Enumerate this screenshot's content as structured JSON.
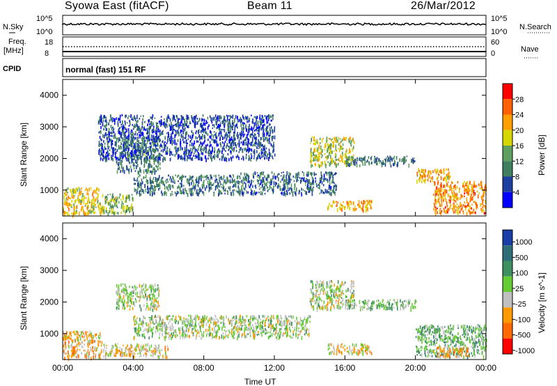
{
  "header": {
    "station": "Syowa East (fitACF)",
    "beam": "Beam 11",
    "date": "26/Mar/2012"
  },
  "strips": {
    "nsky_label": "N.Sky",
    "nsearch_label": "N.Search",
    "noise_ticks": [
      "10^5",
      "10^0"
    ],
    "freq_label": "Freq.",
    "freq_unit": "[MHz]",
    "freq_ticks": [
      "18",
      "8"
    ],
    "nave_label": "Nave",
    "nave_ticks": [
      "60",
      "0"
    ],
    "cpid_label": "CPID",
    "cpid_value": "normal (fast) 151 RF"
  },
  "colors": {
    "power_scale": [
      "#0000ff",
      "#1f3fa0",
      "#3f7f5f",
      "#5fa060",
      "#d6d600",
      "#ffa000",
      "#ff6000",
      "#ff0000"
    ],
    "velocity_scale": [
      "#1a3da8",
      "#2f6e78",
      "#3f9060",
      "#66cc33",
      "#c0c0c0",
      "#ff9900",
      "#ff6a00",
      "#ff0000"
    ],
    "ground_scatter": "#c0c0c0"
  },
  "chart_data": [
    {
      "type": "heatmap",
      "panel": "power",
      "ylabel": "Slant Range [km]",
      "xlabel": "",
      "x_ticks": [
        "00:00",
        "04:00",
        "08:00",
        "12:00",
        "16:00",
        "20:00",
        "00:00"
      ],
      "xlim_hours": [
        0,
        24
      ],
      "y_ticks": [
        1000,
        2000,
        3000,
        4000
      ],
      "ylim": [
        180,
        4500
      ],
      "colorbar": {
        "label": "Power [dB]",
        "ticks": [
          "28",
          "24",
          "20",
          "16",
          "12",
          "8",
          "4"
        ],
        "range": [
          0,
          30
        ]
      },
      "scatter_regions": [
        {
          "t": [
            0.0,
            2.2
          ],
          "r": [
            250,
            1100
          ],
          "value": 18
        },
        {
          "t": [
            2.2,
            4.0
          ],
          "r": [
            300,
            900
          ],
          "value": 14
        },
        {
          "t": [
            3.0,
            5.5
          ],
          "r": [
            1600,
            2700
          ],
          "value": 10
        },
        {
          "t": [
            4.0,
            10.0
          ],
          "r": [
            900,
            1500
          ],
          "value": 9
        },
        {
          "t": [
            10.0,
            15.5
          ],
          "r": [
            900,
            1600
          ],
          "value": 8
        },
        {
          "t": [
            2.0,
            12.0
          ],
          "r": [
            2000,
            3400
          ],
          "value": 6
        },
        {
          "t": [
            14.0,
            16.5
          ],
          "r": [
            1800,
            2700
          ],
          "value": 16
        },
        {
          "t": [
            15.0,
            17.5
          ],
          "r": [
            400,
            700
          ],
          "value": 20
        },
        {
          "t": [
            16.0,
            20.0
          ],
          "r": [
            1800,
            2100
          ],
          "value": 9
        },
        {
          "t": [
            21.0,
            24.0
          ],
          "r": [
            300,
            1300
          ],
          "value": 22
        },
        {
          "t": [
            20.0,
            22.0
          ],
          "r": [
            1300,
            1700
          ],
          "value": 20
        }
      ]
    },
    {
      "type": "heatmap",
      "panel": "velocity",
      "ylabel": "Slant Range [km]",
      "xlabel": "Time UT",
      "x_ticks": [
        "00:00",
        "04:00",
        "08:00",
        "12:00",
        "16:00",
        "20:00",
        "00:00"
      ],
      "xlim_hours": [
        0,
        24
      ],
      "y_ticks": [
        1000,
        2000,
        3000,
        4000
      ],
      "ylim": [
        180,
        4500
      ],
      "colorbar": {
        "label": "Velocity [m s^-1]",
        "ticks": [
          "1000",
          "500",
          "100",
          "25",
          "-25",
          "-100",
          "-500",
          "-1000"
        ],
        "range": [
          -1000,
          1000
        ]
      },
      "scatter_regions": [
        {
          "t": [
            0.0,
            2.2
          ],
          "r": [
            250,
            1100
          ],
          "value": -300
        },
        {
          "t": [
            2.2,
            6.0
          ],
          "r": [
            300,
            700
          ],
          "value": -200
        },
        {
          "t": [
            4.0,
            14.0
          ],
          "r": [
            900,
            1600
          ],
          "value": 0
        },
        {
          "t": [
            3.0,
            5.5
          ],
          "r": [
            1800,
            2600
          ],
          "value": 0
        },
        {
          "t": [
            14.0,
            16.5
          ],
          "r": [
            1800,
            2700
          ],
          "value": 0
        },
        {
          "t": [
            15.0,
            17.5
          ],
          "r": [
            400,
            700
          ],
          "value": -200
        },
        {
          "t": [
            16.0,
            20.0
          ],
          "r": [
            1800,
            2100
          ],
          "value": 150
        },
        {
          "t": [
            20.0,
            24.0
          ],
          "r": [
            300,
            1300
          ],
          "value": 200
        },
        {
          "t": [
            21.0,
            23.0
          ],
          "r": [
            300,
            600
          ],
          "value": -400
        }
      ]
    }
  ]
}
